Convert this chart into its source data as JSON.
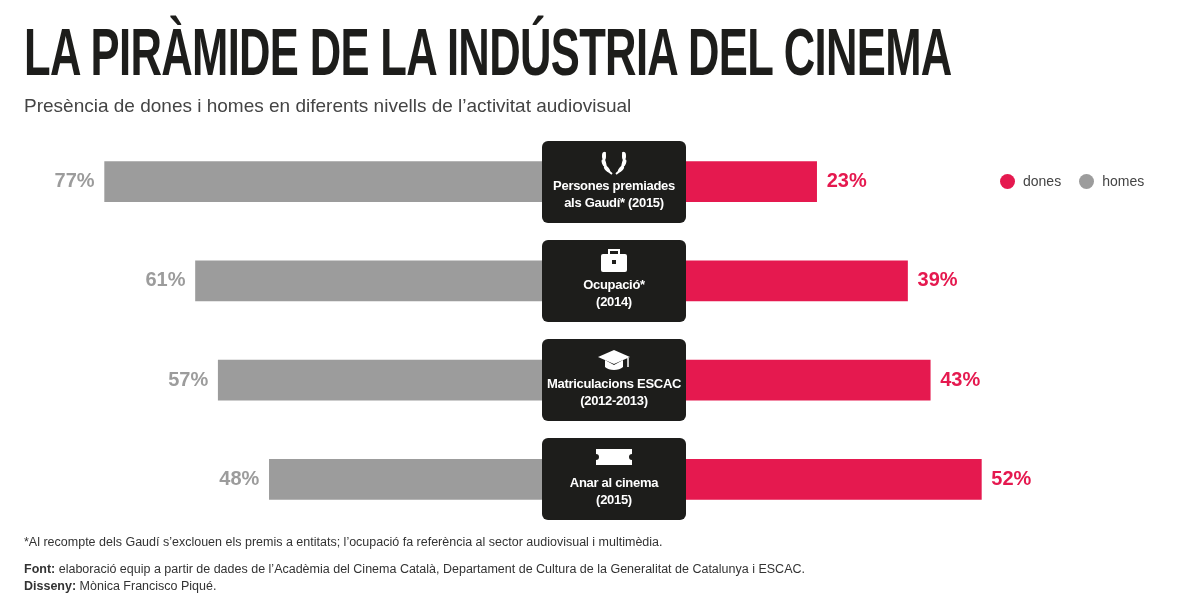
{
  "chart_data": [
    {
      "type": "bar",
      "orientation": "horizontal",
      "title": "LA PIRÀMIDE DE LA INDÚSTRIA DEL CINEMA",
      "subtitle": "Presència de dones i homes en diferents nivells de l’activitat audiovisual",
      "categories": [
        "Persones premiades\nals Gaudí* (2015)",
        "Ocupació*\n(2014)",
        "Matriculacions ESCAC\n(2012-2013)",
        "Anar al cinema\n(2015)"
      ],
      "series": [
        {
          "name": "homes",
          "color": "#9c9c9c",
          "values": [
            77,
            61,
            57,
            48
          ],
          "value_labels": [
            "77%",
            "61%",
            "57%",
            "48%"
          ]
        }
      ],
      "tick_labels": "y",
      "legend": "top right",
      "annotations": [
        "*Al recompte dels Gaudí s’exclouen els premis a entitats; l’ocupació fa referència al sector audiovisual i multimèdia.",
        "Font: elaboració equip a partir de dades de l’Acadèmia del Cinema Català, Departament de Cultura de la Generalitat de Catalunya i ESCAC.",
        "Disseny: Mònica Francisco Piqué."
      ]
    },
    {
      "type": "bar",
      "orientation": "horizontal",
      "categories": [
        null,
        null,
        null,
        null
      ],
      "series": [
        {
          "name": "dones",
          "color": "#e5194f",
          "values": [
            23,
            39,
            43,
            52
          ],
          "value_labels": [
            "23%",
            "39%",
            "43%",
            "52%"
          ]
        }
      ],
      "tick_labels": false,
      "legend": "top right"
    }
  ]
}
